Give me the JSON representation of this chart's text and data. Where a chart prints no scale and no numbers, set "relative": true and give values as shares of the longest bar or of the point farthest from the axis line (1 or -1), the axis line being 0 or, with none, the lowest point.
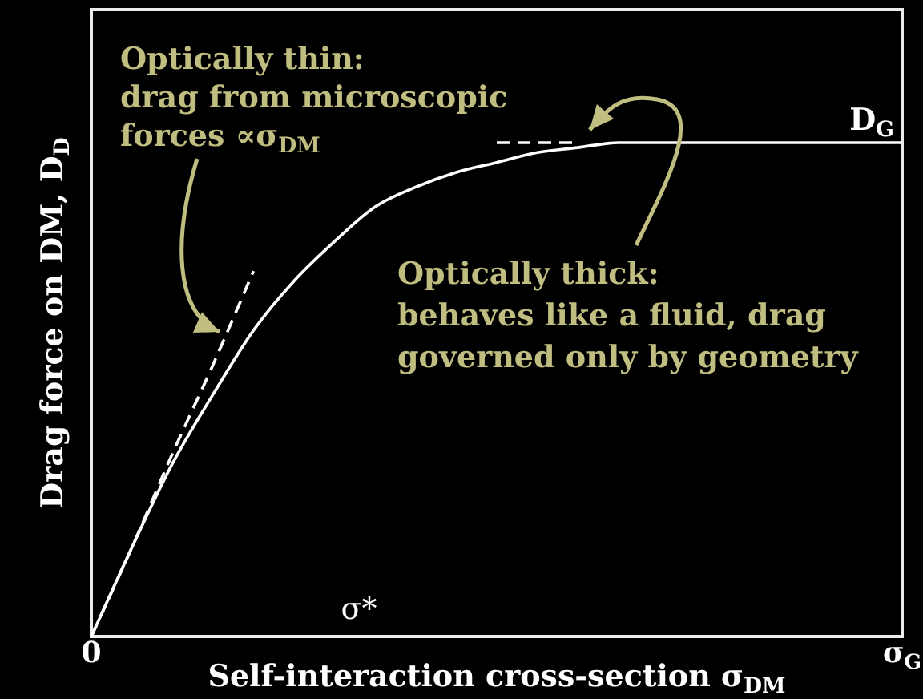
{
  "chart_data": {
    "type": "line",
    "relative": true,
    "xlabel": "Self-interaction cross-section σ$_{DM}$",
    "ylabel": "Drag force on DM, D$_{D}$",
    "categories": [
      "0",
      null,
      null,
      null,
      null,
      null,
      null,
      null,
      null,
      null,
      null,
      null,
      null,
      null,
      null,
      null,
      null,
      null,
      null,
      null,
      "σ$_{G}$"
    ],
    "marker": "none",
    "series": [
      {
        "color": "#ffffff",
        "line_style": "solid",
        "values": [
          0,
          0.18,
          0.35,
          0.49,
          0.62,
          0.72,
          0.8,
          0.87,
          0.91,
          0.94,
          0.96,
          0.98,
          0.99,
          1,
          1,
          1,
          1,
          1,
          1,
          1,
          1
        ]
      },
      {
        "color": "#ffffff",
        "line_style": "dashed",
        "values": [
          0,
          0.18,
          0.37,
          0.55,
          0.74,
          null,
          null,
          null,
          null,
          null,
          null,
          null,
          null,
          null,
          null,
          null,
          null,
          null,
          null,
          null,
          null
        ]
      },
      {
        "color": "#ffffff",
        "line_style": "dashed",
        "values": [
          null,
          null,
          null,
          null,
          null,
          null,
          null,
          null,
          null,
          null,
          1,
          1,
          1,
          null,
          null,
          null,
          null,
          null,
          null,
          null,
          null
        ]
      }
    ],
    "annotations": [
      "Optically thin:\ndrag from microscopic\nforces ∝σ$_{DM}$",
      "Optically thick:\nbehaves like a fluid, drag\ngoverned only by geometry",
      "σ*",
      {
        "text": "D$_{G}$",
        "x": "σ$_{G}$",
        "y": 1
      }
    ]
  }
}
